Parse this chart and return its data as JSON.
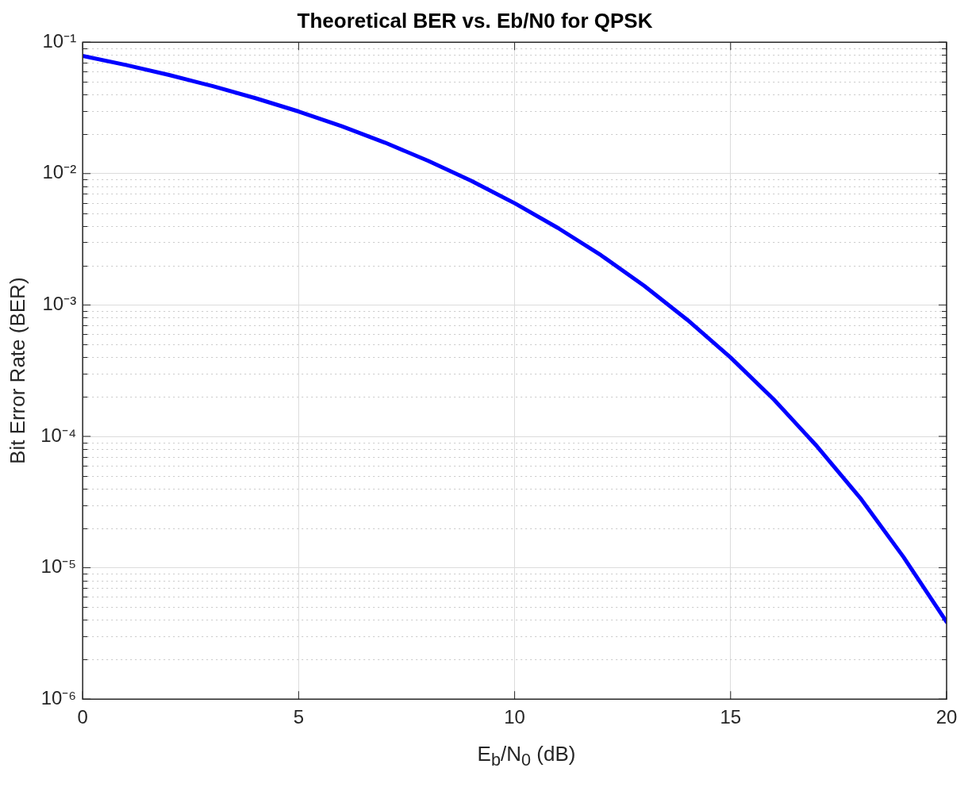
{
  "chart_data": {
    "type": "line",
    "title": "Theoretical BER vs. Eb/N0 for QPSK",
    "xlabel": "E$_{b}$/N$_{0}$ (dB)",
    "ylabel": "Bit Error Rate (BER)",
    "x": [
      0,
      1,
      2,
      3,
      4,
      5,
      6,
      7,
      8,
      9,
      10,
      11,
      12,
      13,
      14,
      15,
      16,
      17,
      18,
      19,
      20
    ],
    "series": [
      {
        "color": "#0000ff",
        "values": [
          0.0786,
          0.0671,
          0.0563,
          0.0464,
          0.0375,
          0.0297,
          0.0229,
          0.0172,
          0.0125,
          0.0088,
          0.00595,
          0.00386,
          0.00239,
          0.0014,
          0.00077,
          0.000398,
          0.000191,
          8.4e-05,
          3.4e-05,
          1.21e-05,
          3.87e-06
        ]
      }
    ],
    "log": "y",
    "xlim": [
      0,
      20
    ],
    "xticks": [
      0,
      5,
      10,
      15,
      20
    ],
    "ylim": [
      1e-06,
      0.1
    ],
    "yticks": [
      {
        "value": 1e-06,
        "label": "10⁻⁶"
      },
      {
        "value": 1e-05,
        "label": "10⁻⁵"
      },
      {
        "value": 0.0001,
        "label": "10⁻⁴"
      },
      {
        "value": 0.001,
        "label": "10⁻³"
      },
      {
        "value": 0.01,
        "label": "10⁻²"
      },
      {
        "value": 0.1,
        "label": "10⁻¹"
      }
    ],
    "grid": true,
    "legend": false,
    "marker": "none",
    "line_style": "solid"
  }
}
